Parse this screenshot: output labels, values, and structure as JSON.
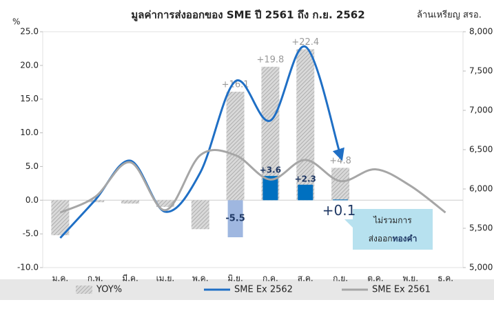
{
  "chart_data": {
    "type": "combo",
    "title": "มูลค่าการส่งออกของ SME ปี 2561 ถึง ก.ย. 2562",
    "y_label": "%",
    "y2_label": "ล้านเหรียญ สรอ.",
    "categories": [
      "ม.ค.",
      "ก.พ.",
      "มี.ค.",
      "เม.ย.",
      "พ.ค.",
      "มิ.ย.",
      "ก.ค.",
      "ส.ค.",
      "ก.ย.",
      "ต.ค.",
      "พ.ย.",
      "ธ.ค."
    ],
    "ylim": [
      -10,
      25
    ],
    "yticks": [
      {
        "value": -10,
        "label": "-10.0"
      },
      {
        "value": -5,
        "label": "-5.0"
      },
      {
        "value": 0,
        "label": "0.0"
      },
      {
        "value": 5,
        "label": "5.0"
      },
      {
        "value": 10,
        "label": "10.0"
      },
      {
        "value": 15,
        "label": "15.0"
      },
      {
        "value": 20,
        "label": "20.0"
      },
      {
        "value": 25,
        "label": "25.0"
      }
    ],
    "y2lim": [
      5000,
      8000
    ],
    "y2ticks": [
      {
        "value": 5000,
        "label": "5,000"
      },
      {
        "value": 5500,
        "label": "5,500"
      },
      {
        "value": 6000,
        "label": "6,000"
      },
      {
        "value": 6500,
        "label": "6,500"
      },
      {
        "value": 7000,
        "label": "7,000"
      },
      {
        "value": 7500,
        "label": "7,500"
      },
      {
        "value": 8000,
        "label": "8,000"
      }
    ],
    "grid": false,
    "series": [
      {
        "name": "YOY%",
        "type": "bar",
        "color": "#b0b0b0",
        "axis": "y",
        "values": [
          -5.2,
          -0.3,
          -0.5,
          -1.0,
          -4.3,
          16.1,
          19.8,
          22.4,
          4.8,
          null,
          null,
          null
        ],
        "value_labels": [
          null,
          null,
          null,
          null,
          null,
          "+16.1",
          "+19.8",
          "+22.4",
          "+4.8",
          null,
          null,
          null
        ]
      },
      {
        "type": "bar",
        "color": "#0070c0",
        "axis": "y",
        "values": [
          null,
          null,
          null,
          null,
          null,
          -5.5,
          3.6,
          2.3,
          0.1,
          null,
          null,
          null
        ],
        "value_labels": [
          null,
          null,
          null,
          null,
          null,
          "-5.5",
          "+3.6",
          "+2.3",
          "+0.1",
          null,
          null,
          null
        ]
      },
      {
        "name": "SME Ex 2562",
        "type": "line",
        "color": "#1f6fc5",
        "axis": "y2",
        "values": [
          5377,
          5860,
          6360,
          5710,
          6210,
          7370,
          6870,
          7810,
          6430,
          null,
          null,
          null
        ]
      },
      {
        "name": "SME Ex 2561",
        "type": "line",
        "color": "#a6a6a6",
        "axis": "y2",
        "values": [
          5700,
          5900,
          6340,
          5730,
          6430,
          6430,
          6120,
          6370,
          6100,
          6250,
          6040,
          5700
        ]
      }
    ],
    "annotation": {
      "line1": "ไม่รวมการ",
      "line2": "ส่งออก",
      "line2_bold": "ทองคำ"
    }
  }
}
